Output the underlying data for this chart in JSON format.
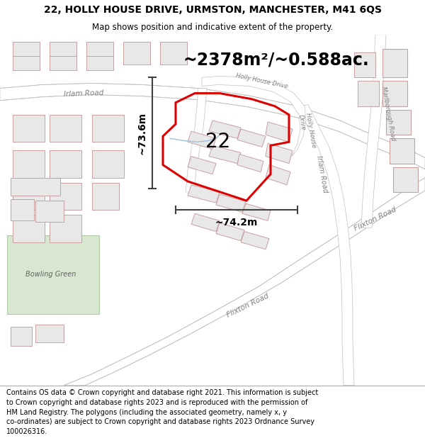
{
  "title": "22, HOLLY HOUSE DRIVE, URMSTON, MANCHESTER, M41 6QS",
  "subtitle": "Map shows position and indicative extent of the property.",
  "footer": "Contains OS data © Crown copyright and database right 2021. This information is subject\nto Crown copyright and database rights 2023 and is reproduced with the permission of\nHM Land Registry. The polygons (including the associated geometry, namely x, y\nco-ordinates) are subject to Crown copyright and database rights 2023 Ordnance Survey\n100026316.",
  "area_text": "~2378m²/~0.588ac.",
  "label_22": "22",
  "dim_horizontal": "~74.2m",
  "dim_vertical": "~73.6m",
  "map_bg": "#ffffff",
  "building_fill": "#e8e8e8",
  "building_edge": "#c8a0a0",
  "road_fill": "#ffffff",
  "road_edge": "#c0c0c0",
  "parcel_color": "#dd0000",
  "dim_color": "#404040",
  "text_color": "#808080",
  "green_fill": "#d8e8d0",
  "green_edge": "#b0c8a8",
  "title_fontsize": 10,
  "subtitle_fontsize": 8.5,
  "footer_fontsize": 7.0,
  "area_fontsize": 17,
  "label_fontsize": 20,
  "dim_fontsize": 10,
  "road_label_fontsize": 7.5
}
